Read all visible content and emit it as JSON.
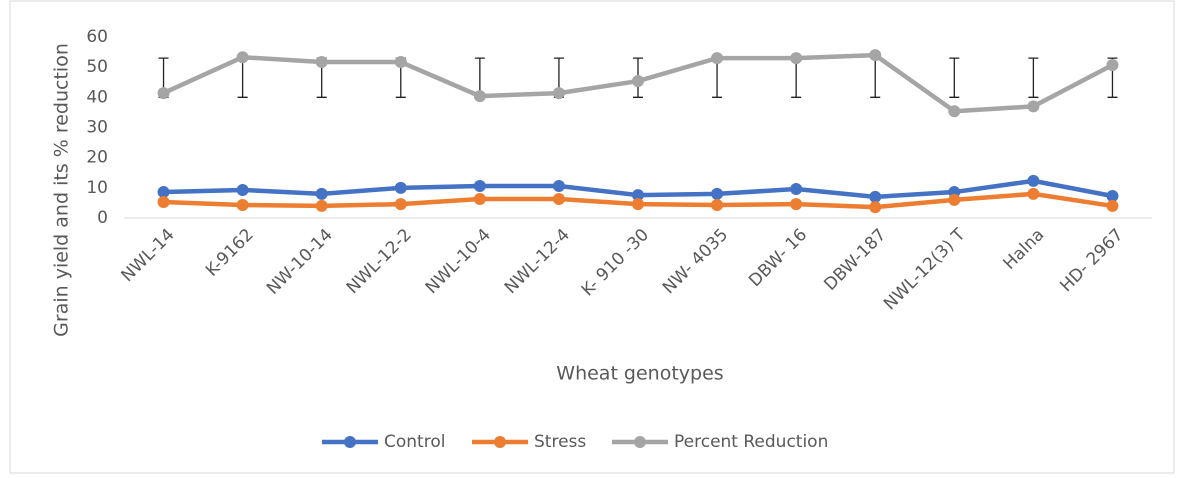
{
  "chart_data": {
    "type": "line",
    "y_label": "Grain yield  and its % reduction",
    "x_label": "Wheat genotypes",
    "categories": [
      "NWL-14",
      "K-9162",
      "NW-10-14",
      "NWL-12-2",
      "NWL-10-4",
      "NWL-12-4",
      "K- 910 -30",
      "NW- 4035",
      "DBW- 16",
      "DBW-187",
      "NWL-12(3) T",
      "Halna",
      "HD- 2967"
    ],
    "series": [
      {
        "name": "Control",
        "color": "#4472c4",
        "values": [
          8.6,
          9.3,
          8.0,
          10.0,
          10.6,
          10.6,
          7.6,
          8.0,
          9.6,
          7.0,
          8.6,
          12.3,
          7.3
        ]
      },
      {
        "name": "Stress",
        "color": "#ed7d31",
        "values": [
          5.3,
          4.3,
          4.0,
          4.6,
          6.3,
          6.3,
          4.6,
          4.3,
          4.6,
          3.6,
          6.0,
          8.0,
          4.0
        ]
      },
      {
        "name": "Percent Reduction",
        "color": "#a5a5a5",
        "values": [
          41.4,
          53.3,
          51.7,
          51.7,
          40.4,
          41.4,
          45.4,
          53.0,
          53.0,
          54.0,
          35.4,
          37.0,
          50.7
        ],
        "error_low": [
          40,
          40,
          40,
          40,
          40,
          40,
          40,
          40,
          40,
          40,
          40,
          40,
          40
        ],
        "error_high": [
          53,
          53,
          53,
          53,
          53,
          53,
          53,
          53,
          53,
          53,
          53,
          53,
          53
        ]
      }
    ],
    "ylim": [
      0,
      60
    ],
    "yticks": [
      0,
      10,
      20,
      30,
      40,
      50,
      60
    ],
    "legend": "bottom"
  }
}
